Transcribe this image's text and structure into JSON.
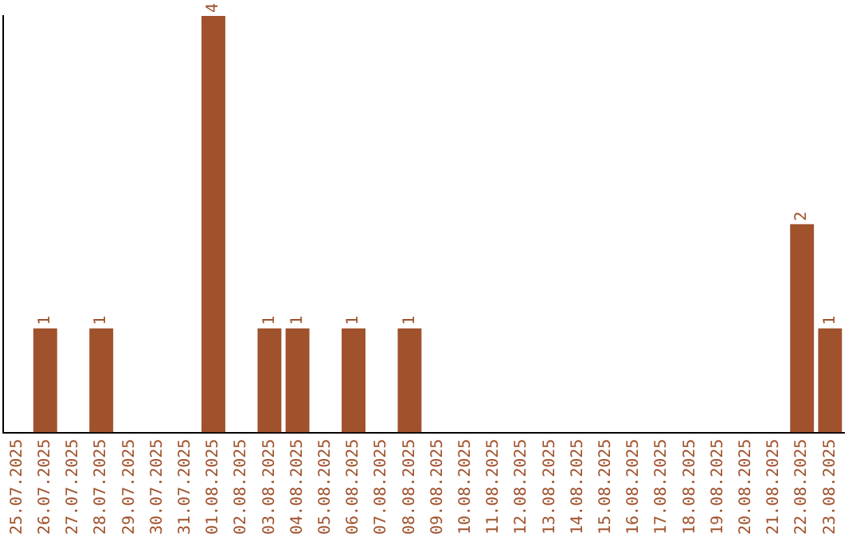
{
  "chart_data": {
    "type": "bar",
    "categories": [
      "25.07.2025",
      "26.07.2025",
      "27.07.2025",
      "28.07.2025",
      "29.07.2025",
      "30.07.2025",
      "31.07.2025",
      "01.08.2025",
      "02.08.2025",
      "03.08.2025",
      "04.08.2025",
      "05.08.2025",
      "06.08.2025",
      "07.08.2025",
      "08.08.2025",
      "09.08.2025",
      "10.08.2025",
      "11.08.2025",
      "12.08.2025",
      "13.08.2025",
      "14.08.2025",
      "15.08.2025",
      "16.08.2025",
      "17.08.2025",
      "18.08.2025",
      "19.08.2025",
      "20.08.2025",
      "21.08.2025",
      "22.08.2025",
      "23.08.2025"
    ],
    "values": [
      0,
      1,
      0,
      1,
      0,
      0,
      0,
      4,
      0,
      1,
      1,
      0,
      1,
      0,
      1,
      0,
      0,
      0,
      0,
      0,
      0,
      0,
      0,
      0,
      0,
      0,
      0,
      0,
      2,
      1
    ],
    "value_labels": [
      null,
      "1",
      null,
      "1",
      null,
      null,
      null,
      "4",
      null,
      "1",
      "1",
      null,
      "1",
      null,
      "1",
      null,
      null,
      null,
      null,
      null,
      null,
      null,
      null,
      null,
      null,
      null,
      null,
      null,
      "2",
      "1"
    ],
    "color": "#a0522d",
    "ylim": [
      0,
      4
    ],
    "tick_labels": "x",
    "grid": false,
    "legend": false
  }
}
